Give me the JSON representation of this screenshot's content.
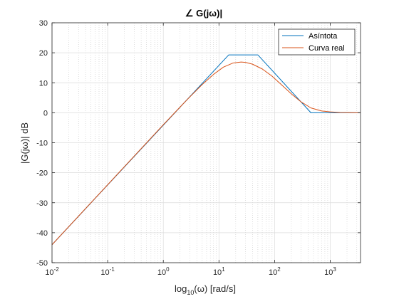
{
  "chart_data": {
    "type": "line",
    "title": "∠ G(jω)|",
    "xlabel": "log10(ω) [rad/s]",
    "xlabel_parts": {
      "prefix": "log",
      "subscript": "10",
      "suffix": "(ω) [rad/s]"
    },
    "ylabel": "|G(jω)| dB",
    "xscale": "log",
    "xlim": [
      0.01,
      3500
    ],
    "ylim": [
      -50,
      30
    ],
    "grid": true,
    "minor_grid": true,
    "legend_position": "top-right",
    "xticks": [
      {
        "value": 0.01,
        "base": "10",
        "exp": "-2"
      },
      {
        "value": 0.1,
        "base": "10",
        "exp": "-1"
      },
      {
        "value": 1,
        "base": "10",
        "exp": "0"
      },
      {
        "value": 10,
        "base": "10",
        "exp": "1"
      },
      {
        "value": 100,
        "base": "10",
        "exp": "2"
      },
      {
        "value": 1000,
        "base": "10",
        "exp": "3"
      }
    ],
    "yticks": [
      {
        "value": 30,
        "label": "30"
      },
      {
        "value": 20,
        "label": "20"
      },
      {
        "value": 10,
        "label": "10"
      },
      {
        "value": 0,
        "label": "0"
      },
      {
        "value": -10,
        "label": "-10"
      },
      {
        "value": -20,
        "label": "-20"
      },
      {
        "value": -30,
        "label": "-30"
      },
      {
        "value": -40,
        "label": "-40"
      },
      {
        "value": -50,
        "label": "-50"
      }
    ],
    "series": [
      {
        "name": "Asíntota",
        "color": "#0072BD",
        "x": [
          0.01,
          15,
          50,
          450,
          3500
        ],
        "y": [
          -44,
          19.3,
          19.3,
          0,
          0
        ]
      },
      {
        "name": "Curva real",
        "color": "#D95319",
        "x": [
          0.01,
          0.1,
          1,
          2,
          3,
          5,
          8,
          12,
          18,
          25,
          30,
          40,
          60,
          90,
          130,
          200,
          300,
          450,
          700,
          1000,
          1500,
          2000,
          3000,
          3500
        ],
        "y": [
          -44,
          -24,
          -4,
          1.9,
          5.3,
          9.4,
          12.8,
          15.2,
          16.6,
          16.9,
          16.8,
          16.2,
          14.6,
          12.2,
          9.5,
          6.3,
          3.6,
          1.6,
          0.6,
          0.3,
          0.1,
          0.05,
          0,
          0
        ]
      }
    ]
  }
}
